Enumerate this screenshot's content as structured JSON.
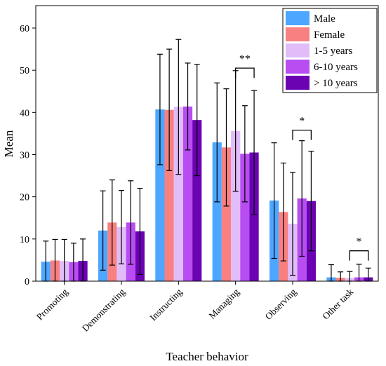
{
  "chart_data": {
    "type": "bar",
    "xlabel": "Teacher behavior",
    "ylabel": "Mean",
    "ylim": [
      0,
      65
    ],
    "yticks": [
      0,
      10,
      20,
      30,
      40,
      50,
      60
    ],
    "categories": [
      "Promoting",
      "Demonstrating",
      "Instructing",
      "Managing",
      "Observing",
      "Other task"
    ],
    "series": [
      {
        "name": "Male",
        "color": "#4da6ff",
        "values": [
          4.6,
          12.0,
          40.7,
          32.9,
          19.1,
          0.9
        ],
        "err": [
          4.9,
          9.4,
          13.1,
          14.1,
          13.7,
          3.0
        ]
      },
      {
        "name": "Female",
        "color": "#f88080",
        "values": [
          4.9,
          13.9,
          40.6,
          31.7,
          16.4,
          0.8
        ],
        "err": [
          5.0,
          10.1,
          14.4,
          13.9,
          11.6,
          1.4
        ]
      },
      {
        "name": "1-5 years",
        "color": "#e0bdf9",
        "values": [
          4.8,
          12.8,
          41.3,
          35.6,
          13.6,
          0.7
        ],
        "err": [
          5.1,
          8.7,
          16.0,
          14.3,
          12.2,
          1.6
        ]
      },
      {
        "name": "6-10 years",
        "color": "#b84df2",
        "values": [
          4.5,
          13.9,
          41.4,
          30.2,
          19.6,
          0.9
        ],
        "err": [
          4.5,
          9.9,
          10.3,
          11.4,
          13.7,
          3.1
        ]
      },
      {
        "name": "> 10 years",
        "color": "#6b03b3",
        "values": [
          4.8,
          11.8,
          38.2,
          30.5,
          19.0,
          0.9
        ],
        "err": [
          5.2,
          10.2,
          13.2,
          14.7,
          11.8,
          2.2
        ]
      }
    ],
    "annotations": [
      {
        "category": "Managing",
        "text": "**",
        "from_series": 2,
        "to_series": 4,
        "y": 50.5
      },
      {
        "category": "Observing",
        "text": "*",
        "from_series": 2,
        "to_series": 4,
        "y": 35.8
      },
      {
        "category": "Other task",
        "text": "*",
        "from_series": 2,
        "to_series": 4,
        "y": 7.2
      }
    ],
    "legend_position": "top-right",
    "grid": false
  }
}
